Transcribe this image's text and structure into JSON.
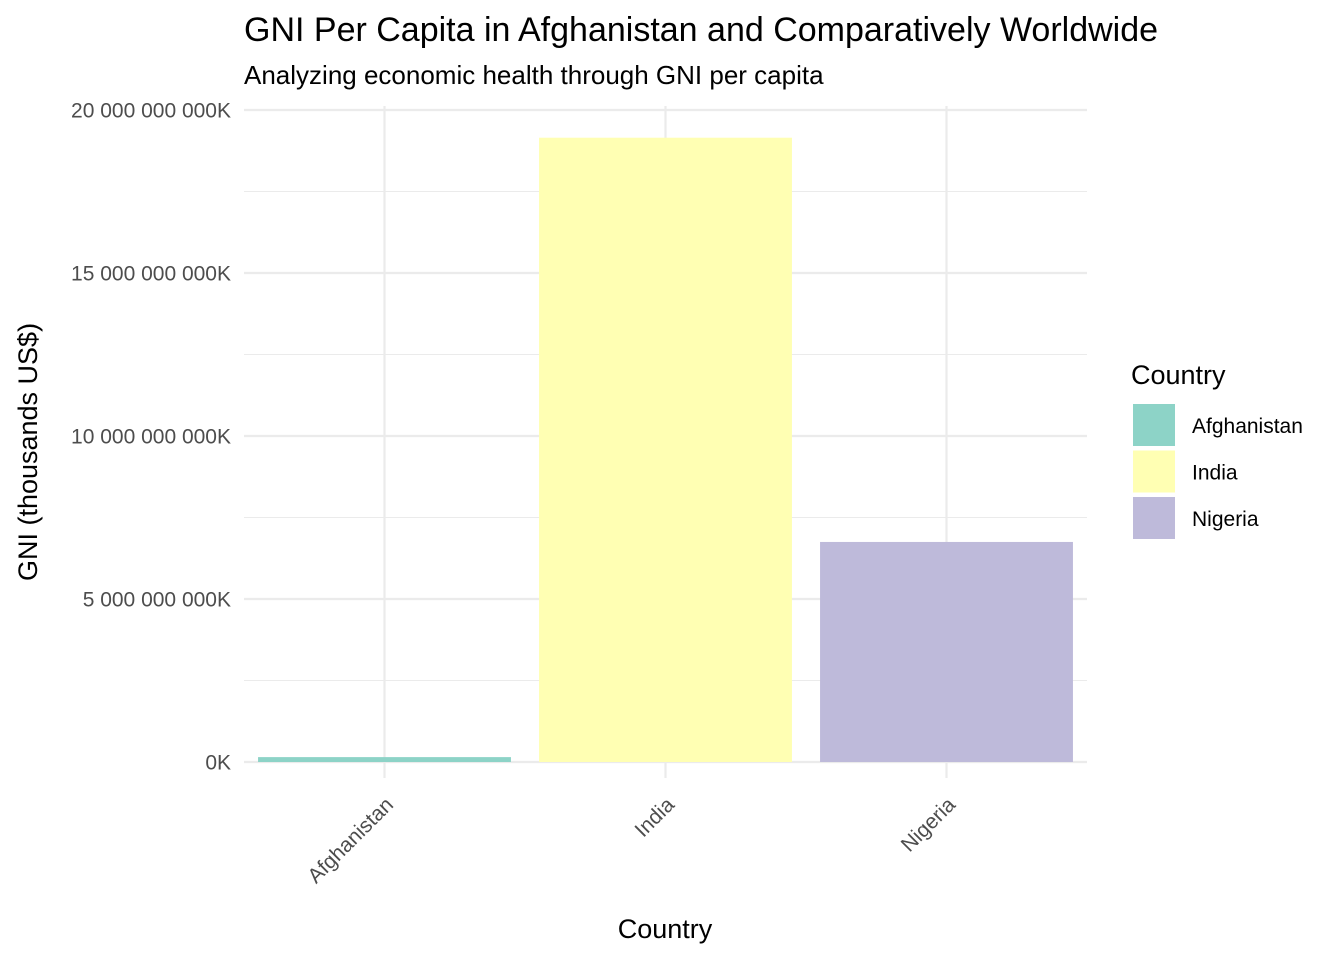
{
  "chart_data": {
    "type": "bar",
    "title": "GNI Per Capita in Afghanistan and Comparatively Worldwide",
    "subtitle": "Analyzing economic health through GNI per capita",
    "xlabel": "Country",
    "ylabel": "GNI (thousands US$)",
    "categories": [
      "Afghanistan",
      "India",
      "Nigeria"
    ],
    "values": [
      150000000,
      19150000000,
      6750000000
    ],
    "colors": [
      "#8DD3C7",
      "#FFFFB3",
      "#BEBADA"
    ],
    "ylim": [
      0,
      20000000000
    ],
    "y_ticks": [
      0,
      5000000000,
      10000000000,
      15000000000,
      20000000000
    ],
    "y_tick_labels": [
      "0K",
      "5 000 000 000K",
      "10 000 000 000K",
      "15 000 000 000K",
      "20 000 000 000K"
    ],
    "grid": true,
    "legend": {
      "title": "Country",
      "position": "right",
      "entries": [
        "Afghanistan",
        "India",
        "Nigeria"
      ]
    }
  }
}
